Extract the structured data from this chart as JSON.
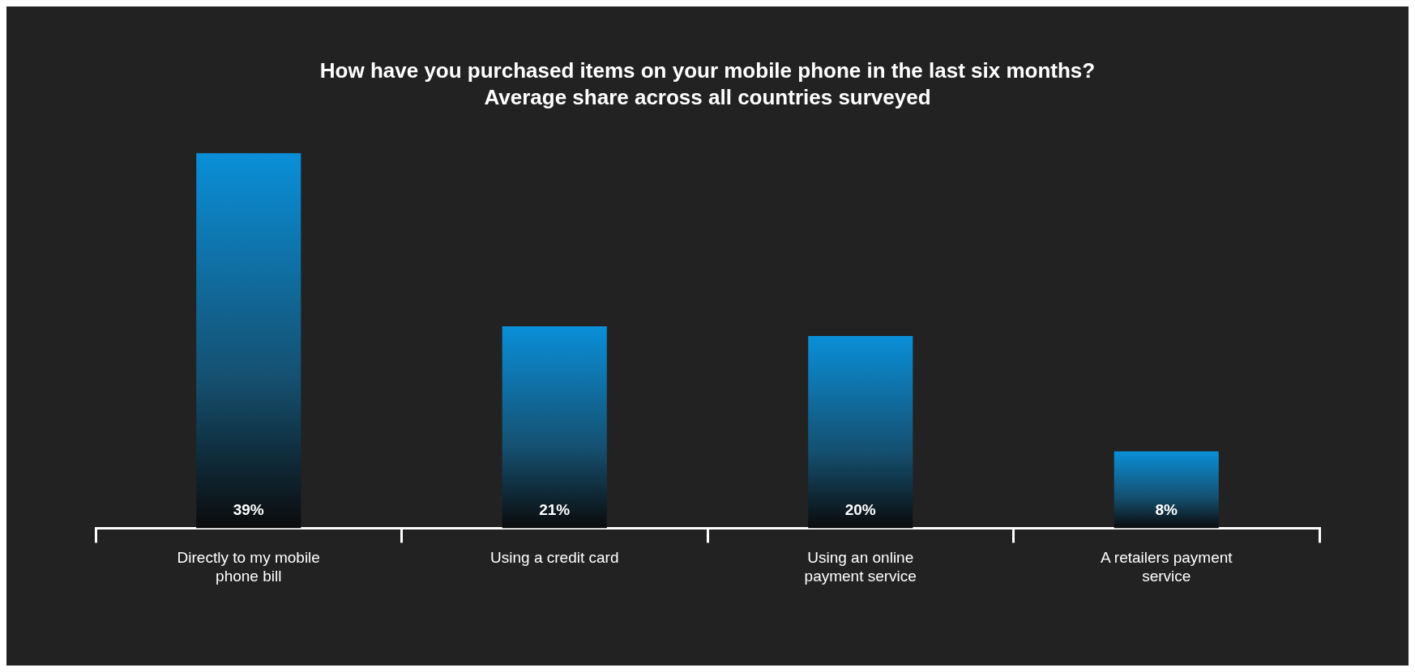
{
  "chart_data": {
    "type": "bar",
    "title": "How have you purchased items on your mobile phone in the last six months?",
    "subtitle": "Average share across all countries surveyed",
    "categories": [
      "Directly to my mobile phone bill",
      "Using a credit card",
      "Using an online payment service",
      "A retailers payment service"
    ],
    "values": [
      39,
      21,
      20,
      8
    ],
    "value_labels": [
      "39%",
      "21%",
      "20%",
      "8%"
    ],
    "color": "#0a8fd8",
    "grid": false,
    "legend": false
  }
}
